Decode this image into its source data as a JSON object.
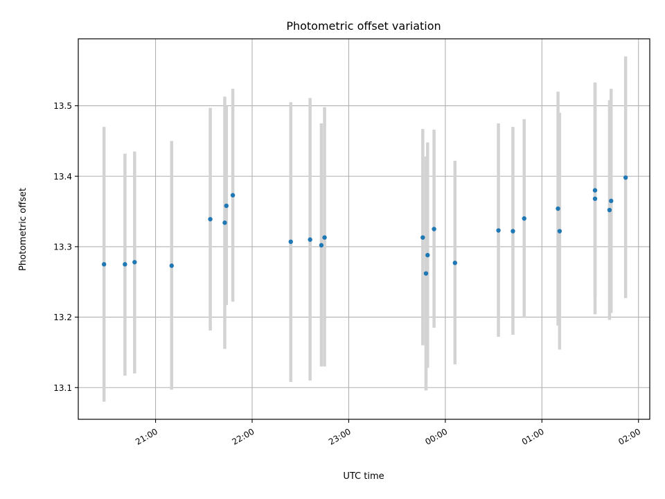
{
  "chart_data": {
    "type": "scatter",
    "title": "Photometric offset variation",
    "xlabel": "UTC time",
    "ylabel": "Photometric offset",
    "xlim": [
      "2021-01-01T20:12",
      "2021-01-02T02:07"
    ],
    "ylim": [
      13.055,
      13.595
    ],
    "x_ticks": [
      {
        "time": "2021-01-01T21:00",
        "label": "21:00"
      },
      {
        "time": "2021-01-01T22:00",
        "label": "22:00"
      },
      {
        "time": "2021-01-01T23:00",
        "label": "23:00"
      },
      {
        "time": "2021-01-02T00:00",
        "label": "00:00"
      },
      {
        "time": "2021-01-02T01:00",
        "label": "01:00"
      },
      {
        "time": "2021-01-02T02:00",
        "label": "02:00"
      }
    ],
    "y_ticks": [
      {
        "value": 13.1,
        "label": "13.1"
      },
      {
        "value": 13.2,
        "label": "13.2"
      },
      {
        "value": 13.3,
        "label": "13.3"
      },
      {
        "value": 13.4,
        "label": "13.4"
      },
      {
        "value": 13.5,
        "label": "13.5"
      }
    ],
    "grid": true,
    "colors": {
      "point": "#1f77b4",
      "errorbar": "#d3d3d3",
      "grid": "#b0b0b0"
    },
    "points": [
      {
        "time": "2021-01-01T20:28",
        "y": 13.275,
        "low": 13.08,
        "high": 13.47
      },
      {
        "time": "2021-01-01T20:41",
        "y": 13.275,
        "low": 13.117,
        "high": 13.432
      },
      {
        "time": "2021-01-01T20:47",
        "y": 13.278,
        "low": 13.12,
        "high": 13.435
      },
      {
        "time": "2021-01-01T21:10",
        "y": 13.273,
        "low": 13.097,
        "high": 13.45
      },
      {
        "time": "2021-01-01T21:34",
        "y": 13.339,
        "low": 13.181,
        "high": 13.497
      },
      {
        "time": "2021-01-01T21:43",
        "y": 13.334,
        "low": 13.155,
        "high": 13.513
      },
      {
        "time": "2021-01-01T21:44",
        "y": 13.358,
        "low": 13.217,
        "high": 13.5
      },
      {
        "time": "2021-01-01T21:48",
        "y": 13.373,
        "low": 13.222,
        "high": 13.524
      },
      {
        "time": "2021-01-01T22:24",
        "y": 13.307,
        "low": 13.108,
        "high": 13.505
      },
      {
        "time": "2021-01-01T22:36",
        "y": 13.31,
        "low": 13.11,
        "high": 13.511
      },
      {
        "time": "2021-01-01T22:43",
        "y": 13.302,
        "low": 13.13,
        "high": 13.475
      },
      {
        "time": "2021-01-01T22:45",
        "y": 13.313,
        "low": 13.13,
        "high": 13.498
      },
      {
        "time": "2021-01-01T23:46",
        "y": 13.313,
        "low": 13.16,
        "high": 13.467
      },
      {
        "time": "2021-01-01T23:48",
        "y": 13.262,
        "low": 13.096,
        "high": 13.428
      },
      {
        "time": "2021-01-01T23:49",
        "y": 13.288,
        "low": 13.128,
        "high": 13.448
      },
      {
        "time": "2021-01-01T23:53",
        "y": 13.325,
        "low": 13.185,
        "high": 13.466
      },
      {
        "time": "2021-01-02T00:06",
        "y": 13.277,
        "low": 13.133,
        "high": 13.422
      },
      {
        "time": "2021-01-02T00:33",
        "y": 13.323,
        "low": 13.172,
        "high": 13.475
      },
      {
        "time": "2021-01-02T00:42",
        "y": 13.322,
        "low": 13.175,
        "high": 13.47
      },
      {
        "time": "2021-01-02T00:49",
        "y": 13.34,
        "low": 13.199,
        "high": 13.481
      },
      {
        "time": "2021-01-02T01:10",
        "y": 13.354,
        "low": 13.188,
        "high": 13.52
      },
      {
        "time": "2021-01-02T01:11",
        "y": 13.322,
        "low": 13.154,
        "high": 13.49
      },
      {
        "time": "2021-01-02T01:33",
        "y": 13.38,
        "low": 13.228,
        "high": 13.532
      },
      {
        "time": "2021-01-02T01:33",
        "y": 13.368,
        "low": 13.204,
        "high": 13.533
      },
      {
        "time": "2021-01-02T01:42",
        "y": 13.352,
        "low": 13.196,
        "high": 13.508
      },
      {
        "time": "2021-01-02T01:43",
        "y": 13.365,
        "low": 13.206,
        "high": 13.524
      },
      {
        "time": "2021-01-02T01:52",
        "y": 13.398,
        "low": 13.227,
        "high": 13.57
      }
    ]
  }
}
